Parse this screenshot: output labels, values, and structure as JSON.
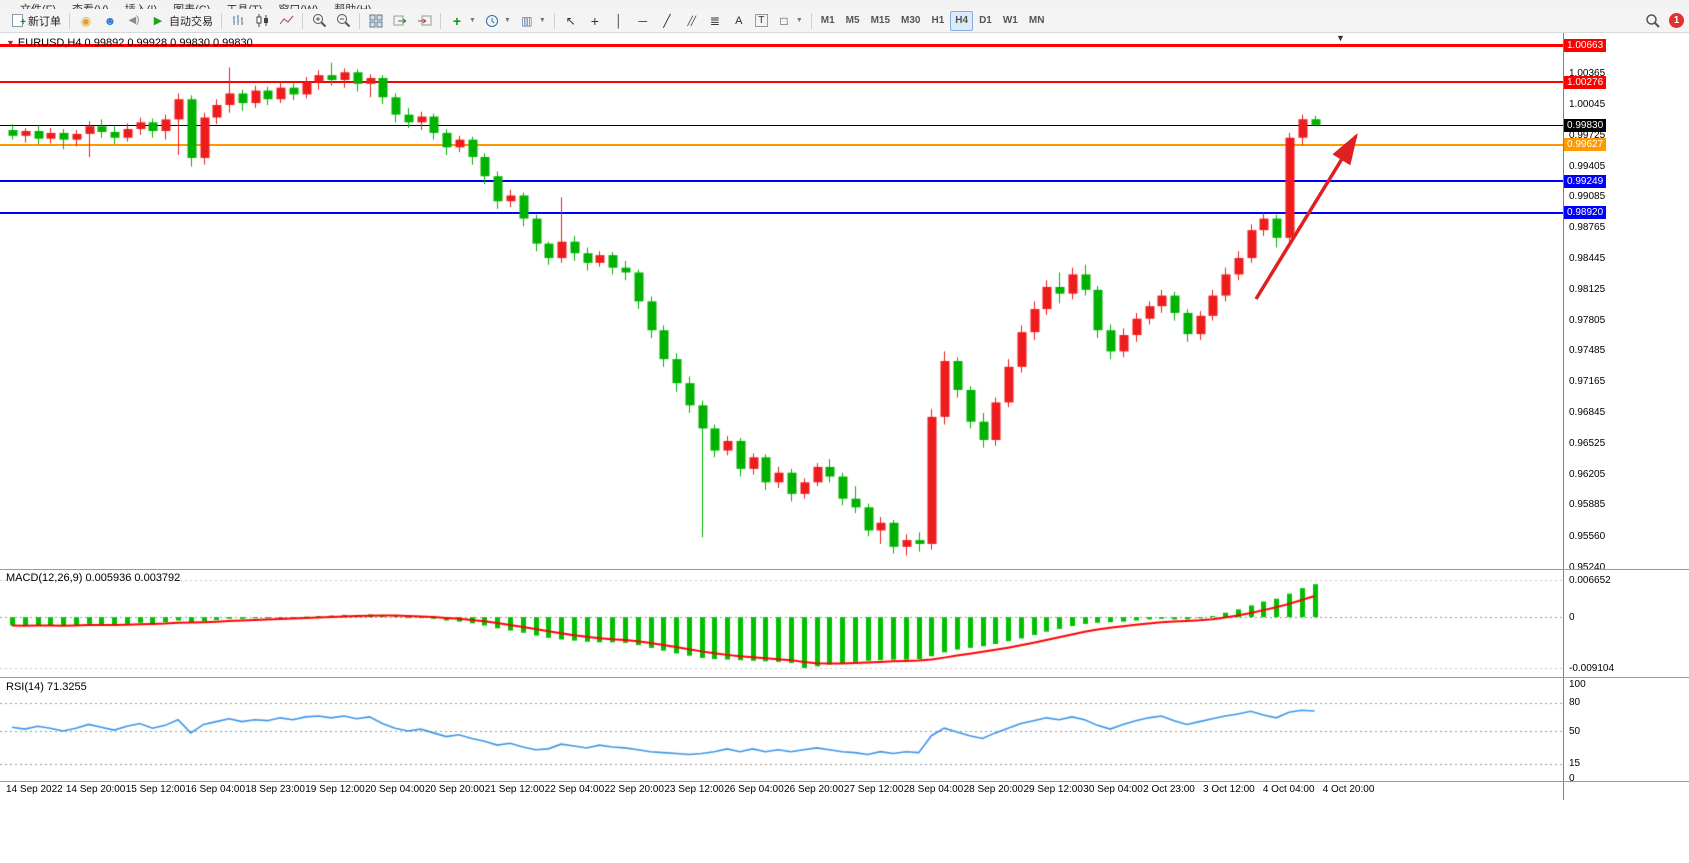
{
  "menubar": {
    "items": [
      "文件(F)",
      "查看(V)",
      "插入(I)",
      "图表(C)",
      "工具(T)",
      "窗口(W)",
      "帮助(H)"
    ]
  },
  "toolbar": {
    "new_order_label": "新订单",
    "autotrade_label": "自动交易",
    "timeframes": [
      "M1",
      "M5",
      "M15",
      "M30",
      "H1",
      "H4",
      "D1",
      "W1",
      "MN"
    ],
    "active_timeframe": "H4",
    "notification_badge": "1"
  },
  "main_chart": {
    "header": "EURUSD,H4 0.99892 0.99928 0.99830 0.99830",
    "shift_marker": "▼",
    "price_ticks": [
      "1.00365",
      "1.00045",
      "0.99725",
      "0.99405",
      "0.99085",
      "0.98765",
      "0.98445",
      "0.98125",
      "0.97805",
      "0.97485",
      "0.97165",
      "0.96845",
      "0.96525",
      "0.96205",
      "0.95885",
      "0.95560",
      "0.95240"
    ],
    "hlines": [
      {
        "label": "1.00663",
        "price": 1.00663,
        "color": "#ff0000",
        "thickness": 3
      },
      {
        "label": "1.00276",
        "price": 1.00276,
        "color": "#ff0000",
        "thickness": 2
      },
      {
        "label": "0.99830",
        "price": 0.9983,
        "color": "#000000",
        "thickness": 1
      },
      {
        "label": "0.99627",
        "price": 0.99627,
        "color": "#ff9900",
        "thickness": 2
      },
      {
        "label": "0.99249",
        "price": 0.99249,
        "color": "#0000ff",
        "thickness": 2
      },
      {
        "label": "0.98920",
        "price": 0.9892,
        "color": "#0000ff",
        "thickness": 2
      }
    ],
    "annotation": {
      "type": "arrow",
      "direction": "up-right",
      "color": "#e02020"
    }
  },
  "macd_panel": {
    "header": "MACD(12,26,9) 0.005936 0.003792",
    "ticks": [
      "0.006652",
      "0",
      "-0.009104"
    ]
  },
  "rsi_panel": {
    "header": "RSI(14) 71.3255",
    "ticks": [
      "100",
      "80",
      "50",
      "15",
      "0"
    ],
    "levels": [
      80,
      50,
      15
    ]
  },
  "chart_data": {
    "type": "candlestick",
    "symbol": "EURUSD",
    "timeframe": "H4",
    "current_ohlc": {
      "open": 0.99892,
      "high": 0.99928,
      "low": 0.9983,
      "close": 0.9983
    },
    "price_axis": {
      "max": 1.00788,
      "min": 0.9523
    },
    "ohlc_format": [
      "open",
      "high",
      "low",
      "close"
    ],
    "candles": [
      [
        0.9978,
        0.9984,
        0.9968,
        0.9972
      ],
      [
        0.9972,
        0.998,
        0.9965,
        0.9977
      ],
      [
        0.9977,
        0.9983,
        0.9963,
        0.9969
      ],
      [
        0.9969,
        0.998,
        0.9964,
        0.9975
      ],
      [
        0.9975,
        0.9979,
        0.9958,
        0.9968
      ],
      [
        0.9968,
        0.9978,
        0.9961,
        0.9974
      ],
      [
        0.9974,
        0.9987,
        0.995,
        0.9982
      ],
      [
        0.9982,
        0.9989,
        0.997,
        0.9976
      ],
      [
        0.9976,
        0.9982,
        0.9963,
        0.997
      ],
      [
        0.997,
        0.9985,
        0.9966,
        0.9979
      ],
      [
        0.9979,
        0.9991,
        0.9973,
        0.9986
      ],
      [
        0.9986,
        0.999,
        0.997,
        0.9977
      ],
      [
        0.9977,
        0.9994,
        0.9968,
        0.9989
      ],
      [
        0.9989,
        1.0016,
        0.9952,
        1.001
      ],
      [
        1.001,
        1.0014,
        0.994,
        0.9949
      ],
      [
        0.9949,
        0.9996,
        0.9942,
        0.9991
      ],
      [
        0.9991,
        1.001,
        0.9984,
        1.0004
      ],
      [
        1.0004,
        1.0043,
        0.9996,
        1.0016
      ],
      [
        1.0016,
        1.002,
        0.9998,
        1.0006
      ],
      [
        1.0006,
        1.0024,
        1.0001,
        1.0019
      ],
      [
        1.0019,
        1.0023,
        1.0004,
        1.001
      ],
      [
        1.001,
        1.0028,
        1.0006,
        1.0022
      ],
      [
        1.0022,
        1.0027,
        1.0009,
        1.0015
      ],
      [
        1.0015,
        1.0033,
        1.0011,
        1.0028
      ],
      [
        1.0028,
        1.004,
        1.002,
        1.0035
      ],
      [
        1.0035,
        1.0048,
        1.0024,
        1.003
      ],
      [
        1.003,
        1.0042,
        1.0022,
        1.0038
      ],
      [
        1.0038,
        1.0041,
        1.0018,
        1.0026
      ],
      [
        1.0026,
        1.0036,
        1.0012,
        1.0032
      ],
      [
        1.0032,
        1.0035,
        1.0005,
        1.0012
      ],
      [
        1.0012,
        1.0016,
        0.9986,
        0.9994
      ],
      [
        0.9994,
        1.0001,
        0.998,
        0.9986
      ],
      [
        0.9986,
        0.9997,
        0.9978,
        0.9992
      ],
      [
        0.9992,
        0.9995,
        0.9968,
        0.9975
      ],
      [
        0.9975,
        0.9979,
        0.9952,
        0.996
      ],
      [
        0.996,
        0.9972,
        0.9955,
        0.9968
      ],
      [
        0.9968,
        0.9971,
        0.9942,
        0.995
      ],
      [
        0.995,
        0.9954,
        0.9922,
        0.993
      ],
      [
        0.993,
        0.9935,
        0.9896,
        0.9904
      ],
      [
        0.9904,
        0.9916,
        0.9898,
        0.991
      ],
      [
        0.991,
        0.9913,
        0.9878,
        0.9886
      ],
      [
        0.9886,
        0.989,
        0.9852,
        0.986
      ],
      [
        0.986,
        0.9862,
        0.9838,
        0.9845
      ],
      [
        0.9845,
        0.9908,
        0.984,
        0.9862
      ],
      [
        0.9862,
        0.9868,
        0.9842,
        0.985
      ],
      [
        0.985,
        0.9856,
        0.9832,
        0.984
      ],
      [
        0.984,
        0.9852,
        0.9836,
        0.9848
      ],
      [
        0.9848,
        0.9851,
        0.9828,
        0.9835
      ],
      [
        0.9835,
        0.9842,
        0.9822,
        0.983
      ],
      [
        0.983,
        0.9833,
        0.9792,
        0.98
      ],
      [
        0.98,
        0.9805,
        0.9762,
        0.977
      ],
      [
        0.977,
        0.9775,
        0.9732,
        0.974
      ],
      [
        0.974,
        0.9746,
        0.9706,
        0.9715
      ],
      [
        0.9715,
        0.9722,
        0.9684,
        0.9692
      ],
      [
        0.9692,
        0.9697,
        0.9555,
        0.9668
      ],
      [
        0.9668,
        0.9672,
        0.9638,
        0.9645
      ],
      [
        0.9645,
        0.966,
        0.964,
        0.9655
      ],
      [
        0.9655,
        0.9658,
        0.9618,
        0.9626
      ],
      [
        0.9626,
        0.9642,
        0.962,
        0.9638
      ],
      [
        0.9638,
        0.9641,
        0.9604,
        0.9612
      ],
      [
        0.9612,
        0.9628,
        0.9606,
        0.9622
      ],
      [
        0.9622,
        0.9626,
        0.9592,
        0.96
      ],
      [
        0.96,
        0.9616,
        0.9595,
        0.9612
      ],
      [
        0.9612,
        0.9632,
        0.9608,
        0.9628
      ],
      [
        0.9628,
        0.9636,
        0.9612,
        0.9618
      ],
      [
        0.9618,
        0.9622,
        0.9588,
        0.9595
      ],
      [
        0.9595,
        0.9608,
        0.958,
        0.9586
      ],
      [
        0.9586,
        0.959,
        0.9556,
        0.9562
      ],
      [
        0.9562,
        0.9576,
        0.9548,
        0.957
      ],
      [
        0.957,
        0.9573,
        0.9538,
        0.9545
      ],
      [
        0.9545,
        0.9558,
        0.9536,
        0.9552
      ],
      [
        0.9552,
        0.956,
        0.954,
        0.9548
      ],
      [
        0.9548,
        0.9688,
        0.9542,
        0.968
      ],
      [
        0.968,
        0.9748,
        0.9672,
        0.9738
      ],
      [
        0.9738,
        0.9742,
        0.97,
        0.9708
      ],
      [
        0.9708,
        0.9712,
        0.9668,
        0.9675
      ],
      [
        0.9675,
        0.9684,
        0.9648,
        0.9656
      ],
      [
        0.9656,
        0.97,
        0.965,
        0.9695
      ],
      [
        0.9695,
        0.974,
        0.969,
        0.9732
      ],
      [
        0.9732,
        0.9775,
        0.9726,
        0.9768
      ],
      [
        0.9768,
        0.98,
        0.976,
        0.9792
      ],
      [
        0.9792,
        0.9822,
        0.9786,
        0.9815
      ],
      [
        0.9815,
        0.983,
        0.9798,
        0.9808
      ],
      [
        0.9808,
        0.9835,
        0.9802,
        0.9828
      ],
      [
        0.9828,
        0.9838,
        0.9806,
        0.9812
      ],
      [
        0.9812,
        0.9816,
        0.9762,
        0.977
      ],
      [
        0.977,
        0.9776,
        0.974,
        0.9748
      ],
      [
        0.9748,
        0.9772,
        0.9742,
        0.9765
      ],
      [
        0.9765,
        0.9788,
        0.9758,
        0.9782
      ],
      [
        0.9782,
        0.98,
        0.9776,
        0.9795
      ],
      [
        0.9795,
        0.9812,
        0.9788,
        0.9806
      ],
      [
        0.9806,
        0.981,
        0.978,
        0.9788
      ],
      [
        0.9788,
        0.9792,
        0.9758,
        0.9766
      ],
      [
        0.9766,
        0.979,
        0.976,
        0.9785
      ],
      [
        0.9785,
        0.9812,
        0.978,
        0.9806
      ],
      [
        0.9806,
        0.9835,
        0.98,
        0.9828
      ],
      [
        0.9828,
        0.9852,
        0.9822,
        0.9845
      ],
      [
        0.9845,
        0.988,
        0.984,
        0.9874
      ],
      [
        0.9874,
        0.9892,
        0.9868,
        0.9886
      ],
      [
        0.9886,
        0.989,
        0.9856,
        0.9866
      ],
      [
        0.9866,
        0.9975,
        0.986,
        0.997
      ],
      [
        0.997,
        0.9994,
        0.9962,
        0.99892
      ],
      [
        0.99892,
        0.99928,
        0.9983,
        0.9983
      ]
    ],
    "macd": {
      "params": "12,26,9",
      "current_value": 0.005936,
      "current_signal": 0.003792,
      "axis": {
        "max": 0.006652,
        "min": -0.009104
      },
      "values": [
        -0.0015,
        -0.0016,
        -0.0014,
        -0.0015,
        -0.0016,
        -0.0014,
        -0.0012,
        -0.0013,
        -0.0014,
        -0.0012,
        -0.001,
        -0.0011,
        -0.0009,
        -0.0006,
        -0.0009,
        -0.0007,
        -0.0005,
        -0.0003,
        -0.0003,
        -0.0002,
        -0.0002,
        -0.0001,
        0.0,
        0.0001,
        0.0002,
        0.0003,
        0.0004,
        0.0004,
        0.0005,
        0.0004,
        0.0002,
        0.0,
        -0.0001,
        -0.0003,
        -0.0006,
        -0.0008,
        -0.0011,
        -0.0015,
        -0.002,
        -0.0024,
        -0.0028,
        -0.0033,
        -0.0037,
        -0.004,
        -0.0042,
        -0.0044,
        -0.0045,
        -0.0045,
        -0.0046,
        -0.005,
        -0.0055,
        -0.006,
        -0.0065,
        -0.0069,
        -0.0073,
        -0.0075,
        -0.0076,
        -0.0077,
        -0.0078,
        -0.0079,
        -0.008,
        -0.0082,
        -0.0091,
        -0.0088,
        -0.0085,
        -0.0083,
        -0.008,
        -0.0078,
        -0.0077,
        -0.0076,
        -0.0076,
        -0.0075,
        -0.007,
        -0.0063,
        -0.0058,
        -0.0055,
        -0.0052,
        -0.0048,
        -0.0043,
        -0.0038,
        -0.0032,
        -0.0026,
        -0.0021,
        -0.0016,
        -0.0012,
        -0.001,
        -0.0009,
        -0.0008,
        -0.0006,
        -0.0004,
        -0.0003,
        -0.0004,
        -0.0004,
        -0.0002,
        0.0002,
        0.0008,
        0.0014,
        0.0021,
        0.0028,
        0.0033,
        0.0042,
        0.0052,
        0.0059
      ]
    },
    "rsi": {
      "period": 14,
      "current": 71.3255,
      "axis": {
        "max": 100,
        "min": 0
      },
      "values": [
        54,
        52,
        55,
        53,
        50,
        53,
        57,
        54,
        51,
        55,
        58,
        53,
        56,
        62,
        48,
        57,
        60,
        63,
        60,
        62,
        61,
        64,
        62,
        65,
        66,
        64,
        66,
        63,
        65,
        58,
        53,
        50,
        52,
        48,
        44,
        46,
        42,
        39,
        35,
        37,
        33,
        30,
        31,
        36,
        34,
        32,
        35,
        33,
        32,
        30,
        28,
        27,
        26,
        25,
        26,
        28,
        31,
        28,
        31,
        28,
        30,
        28,
        30,
        32,
        30,
        28,
        27,
        25,
        28,
        26,
        28,
        27,
        45,
        53,
        49,
        45,
        42,
        48,
        53,
        58,
        61,
        64,
        62,
        65,
        62,
        56,
        52,
        57,
        61,
        64,
        66,
        61,
        57,
        60,
        63,
        66,
        68,
        71,
        67,
        64,
        70,
        72,
        71.3
      ]
    },
    "time_labels": [
      "14 Sep 2022",
      "14 Sep 20:00",
      "15 Sep 12:00",
      "16 Sep 04:00",
      "18 Sep 23:00",
      "19 Sep 12:00",
      "20 Sep 04:00",
      "20 Sep 20:00",
      "21 Sep 12:00",
      "22 Sep 04:00",
      "22 Sep 20:00",
      "23 Sep 12:00",
      "26 Sep 04:00",
      "26 Sep 20:00",
      "27 Sep 12:00",
      "28 Sep 04:00",
      "28 Sep 20:00",
      "29 Sep 12:00",
      "30 Sep 04:00",
      "2 Oct 23:00",
      "3 Oct 12:00",
      "4 Oct 04:00",
      "4 Oct 20:00"
    ],
    "colors": {
      "bull": "#ee1c1c",
      "bear": "#00b200",
      "macd_histogram": "#00c000",
      "macd_signal": "#ff0000",
      "rsi_line": "#3d95e8",
      "arrow": "#e02020"
    }
  }
}
